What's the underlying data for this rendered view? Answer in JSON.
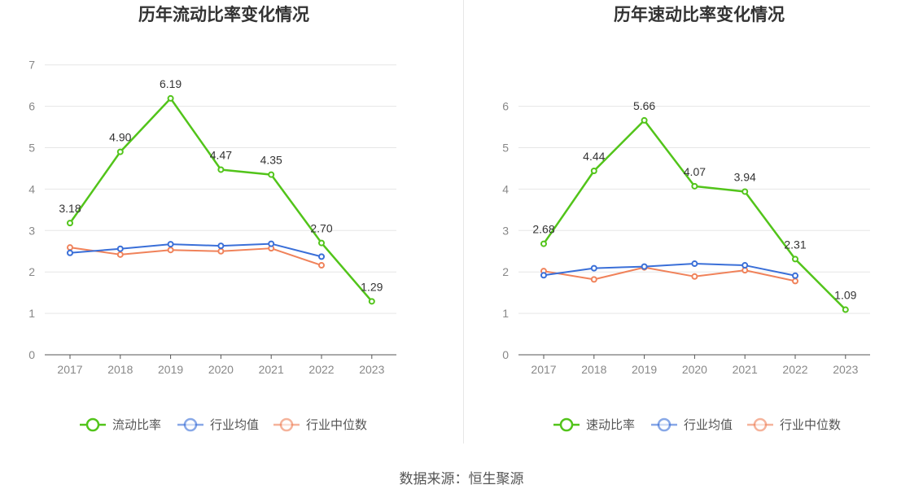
{
  "chart_data": [
    {
      "type": "line",
      "title": "历年流动比率变化情况",
      "categories": [
        "2017",
        "2018",
        "2019",
        "2020",
        "2021",
        "2022",
        "2023"
      ],
      "ylim": [
        0,
        7
      ],
      "yticks": [
        "0",
        "1",
        "2",
        "3",
        "4",
        "5",
        "6",
        "7"
      ],
      "grid": true,
      "legend_position": "bottom",
      "series": [
        {
          "name": "流动比率",
          "color": "#52c41a",
          "values": [
            3.18,
            4.9,
            6.19,
            4.47,
            4.35,
            2.7,
            1.29
          ],
          "labels": [
            "3.18",
            "4.90",
            "6.19",
            "4.47",
            "4.35",
            "2.70",
            "1.29"
          ]
        },
        {
          "name": "行业均值",
          "color": "#3a6fd8",
          "values": [
            2.46,
            2.56,
            2.67,
            2.63,
            2.68,
            2.37,
            null
          ]
        },
        {
          "name": "行业中位数",
          "color": "#f0825a",
          "values": [
            2.59,
            2.42,
            2.53,
            2.5,
            2.57,
            2.16,
            null
          ]
        }
      ]
    },
    {
      "type": "line",
      "title": "历年速动比率变化情况",
      "categories": [
        "2017",
        "2018",
        "2019",
        "2020",
        "2021",
        "2022",
        "2023"
      ],
      "ylim": [
        0,
        6
      ],
      "yticks": [
        "0",
        "1",
        "2",
        "3",
        "4",
        "5",
        "6"
      ],
      "grid": true,
      "legend_position": "bottom",
      "series": [
        {
          "name": "速动比率",
          "color": "#52c41a",
          "values": [
            2.68,
            4.44,
            5.66,
            4.07,
            3.94,
            2.31,
            1.09
          ],
          "labels": [
            "2.68",
            "4.44",
            "5.66",
            "4.07",
            "3.94",
            "2.31",
            "1.09"
          ]
        },
        {
          "name": "行业均值",
          "color": "#3a6fd8",
          "values": [
            1.92,
            2.09,
            2.13,
            2.2,
            2.16,
            1.91,
            null
          ]
        },
        {
          "name": "行业中位数",
          "color": "#f0825a",
          "values": [
            2.02,
            1.82,
            2.11,
            1.89,
            2.04,
            1.78,
            null
          ]
        }
      ]
    }
  ],
  "source": "数据来源：恒生聚源"
}
